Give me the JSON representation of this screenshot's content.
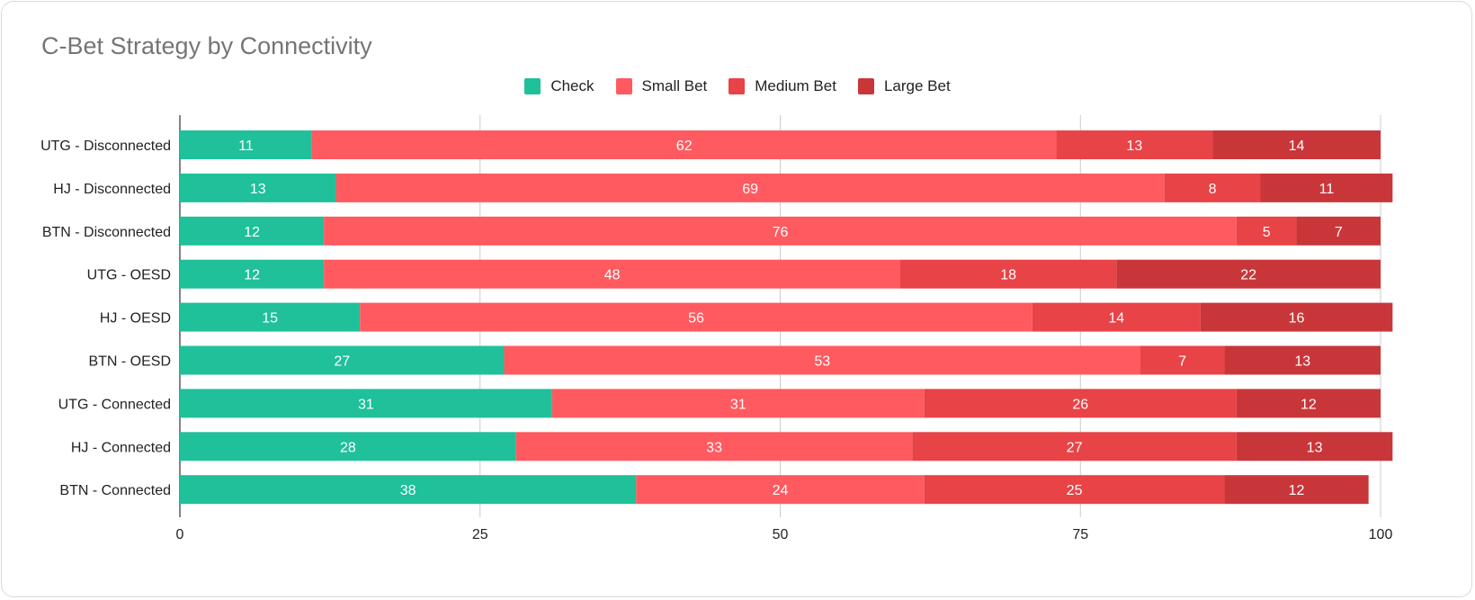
{
  "chart_data": {
    "type": "bar",
    "orientation": "horizontal",
    "stacked": true,
    "title": "C-Bet Strategy by Connectivity",
    "legend_position": "top-center",
    "grid": true,
    "xlim": [
      0,
      100
    ],
    "xticks": [
      0,
      25,
      50,
      75,
      100
    ],
    "categories": [
      "UTG - Disconnected",
      "HJ - Disconnected",
      "BTN - Disconnected",
      "UTG - OESD",
      "HJ - OESD",
      "BTN - OESD",
      "UTG - Connected",
      "HJ - Connected",
      "BTN - Connected"
    ],
    "series": [
      {
        "name": "Check",
        "color": "#1fc09a",
        "values": [
          11,
          13,
          12,
          12,
          15,
          27,
          31,
          28,
          38
        ]
      },
      {
        "name": "Small Bet",
        "color": "#ff5a5f",
        "values": [
          62,
          69,
          76,
          48,
          56,
          53,
          31,
          33,
          24
        ]
      },
      {
        "name": "Medium Bet",
        "color": "#e84346",
        "values": [
          13,
          8,
          5,
          18,
          14,
          7,
          26,
          27,
          25
        ]
      },
      {
        "name": "Large Bet",
        "color": "#c9363a",
        "values": [
          14,
          11,
          7,
          22,
          16,
          13,
          12,
          13,
          12
        ]
      }
    ]
  }
}
